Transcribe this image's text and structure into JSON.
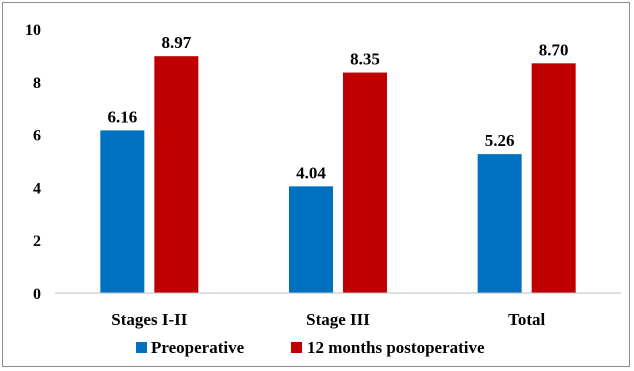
{
  "chart_data": {
    "type": "bar",
    "title": "",
    "xlabel": "",
    "ylabel": "",
    "categories": [
      "Stages I-II",
      "Stage III",
      "Total"
    ],
    "series": [
      {
        "name": "Preoperative",
        "color": "#0070C0",
        "values": [
          6.16,
          4.04,
          5.26
        ],
        "labels": [
          "6.16",
          "4.04",
          "5.26"
        ]
      },
      {
        "name": "12 months postoperative",
        "color": "#C00000",
        "values": [
          8.97,
          8.35,
          8.7
        ],
        "labels": [
          "8.97",
          "8.35",
          "8.70"
        ]
      }
    ],
    "ylim": [
      0,
      10
    ],
    "yticks": [
      0,
      2,
      4,
      6,
      8,
      10
    ],
    "grid": false,
    "legend_position": "bottom"
  }
}
